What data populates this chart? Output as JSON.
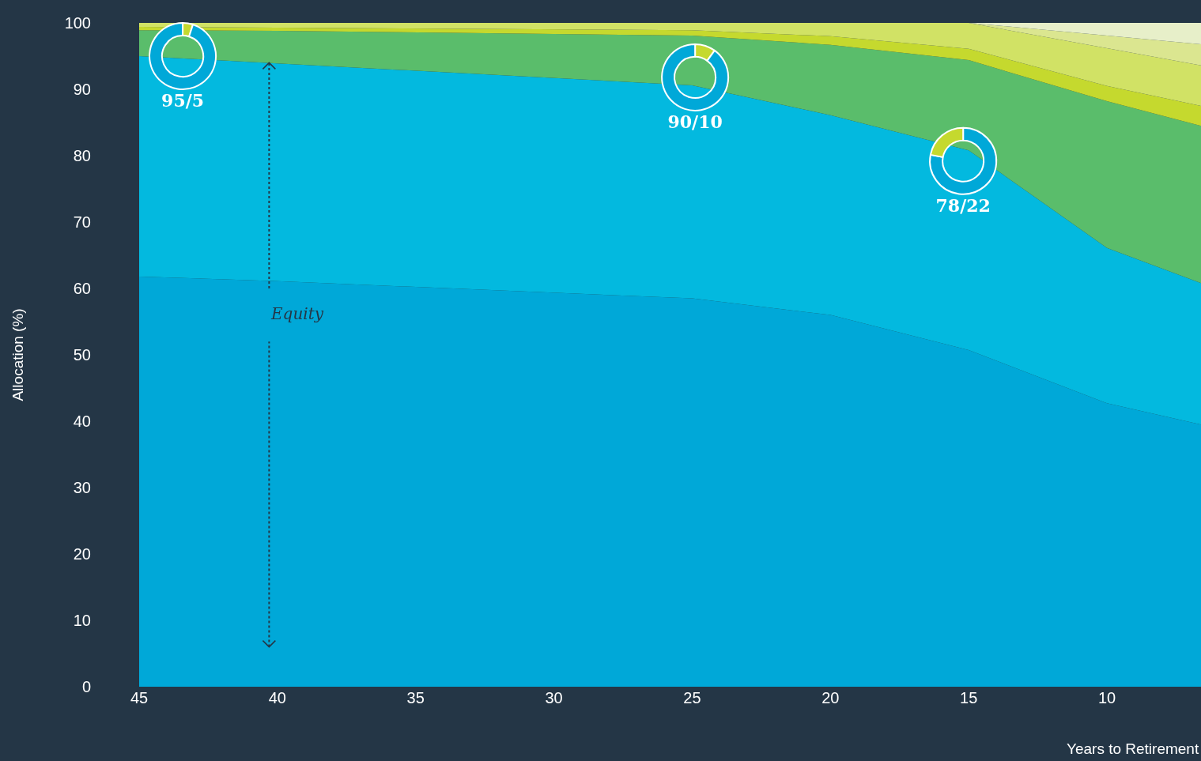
{
  "chart_data": [
    {
      "type": "area",
      "stacked": true,
      "xlabel": "Years to Retirement",
      "ylabel": "Allocation (%)",
      "x": [
        45,
        40,
        25,
        20,
        15,
        10,
        6.6
      ],
      "xlim": [
        45,
        6.6
      ],
      "xticks": [
        45,
        40,
        35,
        30,
        25,
        20,
        15,
        10
      ],
      "ylim": [
        0,
        100
      ],
      "yticks": [
        0,
        10,
        20,
        30,
        40,
        50,
        60,
        70,
        80,
        90,
        100
      ],
      "grid": false,
      "series": [
        {
          "color": "#00a8d8",
          "values": [
            61.8,
            61.1,
            58.5,
            56,
            50.7,
            42.7,
            39.5
          ]
        },
        {
          "color": "#03b9df",
          "values": [
            33.2,
            32.8,
            32.1,
            30.1,
            30.1,
            23.4,
            21.3
          ]
        },
        {
          "color": "#5abd6b",
          "values": [
            3.9,
            4.9,
            7.5,
            10.6,
            13.6,
            22.1,
            23.7
          ]
        },
        {
          "color": "#c5d92e",
          "values": [
            0.5,
            0.5,
            0.8,
            1.3,
            1.7,
            2.3,
            3.0
          ]
        },
        {
          "color": "#d1e265",
          "values": [
            0.6,
            0.7,
            1.1,
            2.0,
            3.9,
            5.7,
            6.1
          ]
        },
        {
          "color": "#dbe690",
          "values": [
            0,
            0,
            0,
            0,
            0,
            1.9,
            3.2
          ]
        },
        {
          "color": "#e7efc9",
          "values": [
            0,
            0,
            0,
            0,
            0,
            1.9,
            3.2
          ]
        }
      ],
      "annotations": [
        {
          "text": "Equity",
          "x": 40.3,
          "y": 94
        }
      ]
    },
    {
      "type": "donut",
      "title": "95/5",
      "categories": [
        null,
        null
      ],
      "values": [
        5,
        95
      ],
      "colors": [
        "#c5d92e",
        "#00a8d8"
      ]
    },
    {
      "type": "donut",
      "title": "90/10",
      "categories": [
        null,
        null
      ],
      "values": [
        10,
        90
      ],
      "colors": [
        "#c5d92e",
        "#00a8d8"
      ]
    },
    {
      "type": "donut",
      "title": "78/22",
      "categories": [
        null,
        null
      ],
      "values": [
        78,
        22
      ],
      "colors": [
        "#00a8d8",
        "#c5d92e"
      ]
    }
  ]
}
